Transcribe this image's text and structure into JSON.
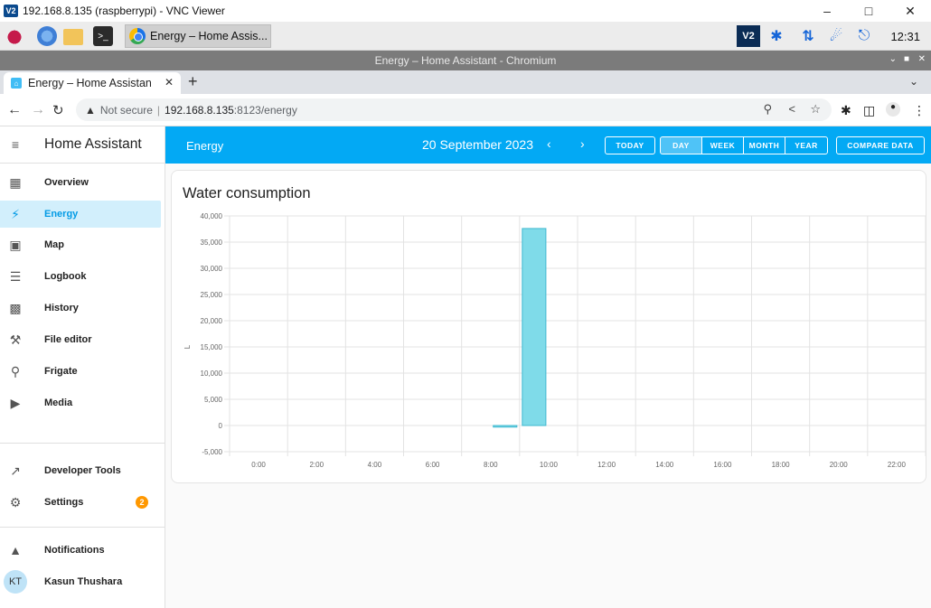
{
  "vnc": {
    "logo": "V2",
    "title": "192.168.8.135 (raspberrypi) - VNC Viewer"
  },
  "taskbar": {
    "task_label": "Energy – Home Assis...",
    "clock": "12:31"
  },
  "browser": {
    "window_title": "Energy – Home Assistant - Chromium",
    "tab_title": "Energy – Home Assistan",
    "security": "Not secure",
    "url_host": "192.168.8.135",
    "url_rest": ":8123/energy"
  },
  "sidebar": {
    "title": "Home Assistant",
    "items": [
      {
        "label": "Overview",
        "icon": "grid-icon"
      },
      {
        "label": "Energy",
        "icon": "lightning-icon"
      },
      {
        "label": "Map",
        "icon": "map-icon"
      },
      {
        "label": "Logbook",
        "icon": "list-icon"
      },
      {
        "label": "History",
        "icon": "chart-icon"
      },
      {
        "label": "File editor",
        "icon": "wrench-icon"
      },
      {
        "label": "Frigate",
        "icon": "cctv-icon"
      },
      {
        "label": "Media",
        "icon": "play-icon"
      },
      {
        "label": "Developer Tools",
        "icon": "hammer-icon"
      },
      {
        "label": "Settings",
        "icon": "gear-icon",
        "badge": "2"
      },
      {
        "label": "Notifications",
        "icon": "bell-icon"
      },
      {
        "label": "Kasun Thushara",
        "avatar": "KT"
      }
    ]
  },
  "toolbar": {
    "title": "Energy",
    "date": "20 September 2023",
    "today": "TODAY",
    "periods": [
      "DAY",
      "WEEK",
      "MONTH",
      "YEAR"
    ],
    "selected_period": "DAY",
    "compare": "COMPARE DATA"
  },
  "card": {
    "title": "Water consumption"
  },
  "chart_data": {
    "type": "bar",
    "title": "Water consumption",
    "ylabel": "L",
    "ylim": [
      -5000,
      40000
    ],
    "yticks": [
      40000,
      35000,
      30000,
      25000,
      20000,
      15000,
      10000,
      5000,
      0,
      -5000
    ],
    "ytick_labels": [
      "40,000",
      "35,000",
      "30,000",
      "25,000",
      "20,000",
      "15,000",
      "10,000",
      "5,000",
      "0",
      "-5,000"
    ],
    "xticks": [
      "0:00",
      "2:00",
      "4:00",
      "6:00",
      "8:00",
      "10:00",
      "12:00",
      "14:00",
      "16:00",
      "18:00",
      "20:00",
      "22:00"
    ],
    "bars": [
      {
        "hour": 9.5,
        "value": -300
      },
      {
        "hour": 10.5,
        "value": 37600
      }
    ],
    "bar_color": "#7fdbe9",
    "bar_border": "#3fb8cf",
    "grid": true
  }
}
